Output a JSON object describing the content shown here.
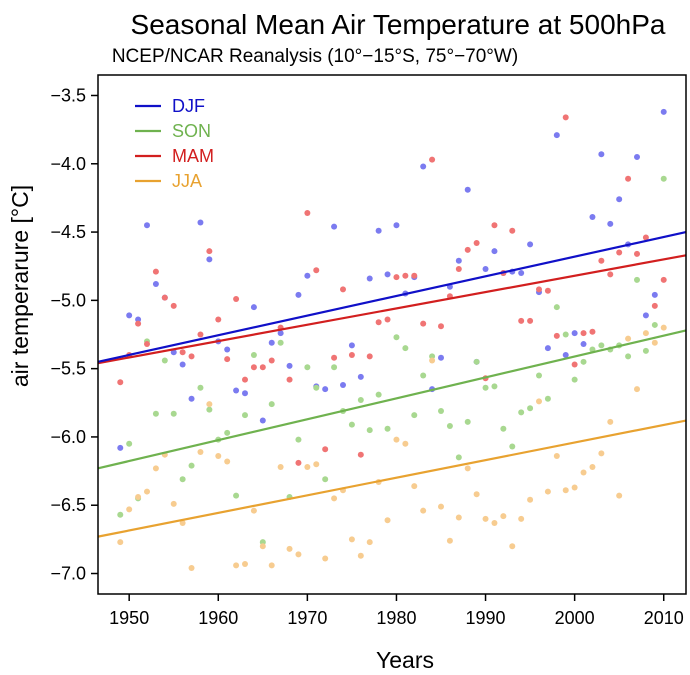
{
  "chart_data": {
    "type": "scatter",
    "title": "Seasonal Mean Air Temperature at 500hPa",
    "subtitle": "NCEP/NCAR Reanalysis (10°−15°S, 75°−70°W)",
    "xlabel": "Years",
    "ylabel": "air temperarure [°C]",
    "xlim": [
      1946.5,
      2012.5
    ],
    "ylim": [
      -7.15,
      -3.35
    ],
    "x_ticks": [
      1950,
      1960,
      1970,
      1980,
      1990,
      2000,
      2010
    ],
    "x_tick_labels": [
      "1950",
      "1960",
      "1970",
      "1980",
      "1990",
      "2000",
      "2010"
    ],
    "y_ticks": [
      -7.0,
      -6.5,
      -6.0,
      -5.5,
      -5.0,
      -4.5,
      -4.0,
      -3.5
    ],
    "y_tick_labels": [
      "−7.0",
      "−6.5",
      "−6.0",
      "−5.5",
      "−5.0",
      "−4.5",
      "−4.0",
      "−3.5"
    ],
    "grid": false,
    "legend_position": "top-left",
    "series": [
      {
        "name": "DJF",
        "color": "#1010c8",
        "point_color": "#7b7bf0",
        "trend": [
          [
            1946.5,
            -5.45
          ],
          [
            2012.5,
            -4.5
          ]
        ],
        "points": [
          [
            1949,
            -6.08
          ],
          [
            1950,
            -5.11
          ],
          [
            1951,
            -5.14
          ],
          [
            1952,
            -4.45
          ],
          [
            1953,
            -4.88
          ],
          [
            1954,
            -4.98
          ],
          [
            1955,
            -5.38
          ],
          [
            1956,
            -5.47
          ],
          [
            1957,
            -5.72
          ],
          [
            1958,
            -4.43
          ],
          [
            1959,
            -4.7
          ],
          [
            1960,
            -5.3
          ],
          [
            1961,
            -5.36
          ],
          [
            1962,
            -5.66
          ],
          [
            1963,
            -5.68
          ],
          [
            1964,
            -5.05
          ],
          [
            1965,
            -5.88
          ],
          [
            1966,
            -5.31
          ],
          [
            1967,
            -5.24
          ],
          [
            1968,
            -5.48
          ],
          [
            1969,
            -4.96
          ],
          [
            1970,
            -4.82
          ],
          [
            1971,
            -5.63
          ],
          [
            1972,
            -5.65
          ],
          [
            1973,
            -4.46
          ],
          [
            1974,
            -5.62
          ],
          [
            1975,
            -5.33
          ],
          [
            1976,
            -5.56
          ],
          [
            1977,
            -4.84
          ],
          [
            1978,
            -4.49
          ],
          [
            1979,
            -4.81
          ],
          [
            1980,
            -4.45
          ],
          [
            1981,
            -4.95
          ],
          [
            1982,
            -4.83
          ],
          [
            1983,
            -4.02
          ],
          [
            1984,
            -5.65
          ],
          [
            1985,
            -5.42
          ],
          [
            1986,
            -4.9
          ],
          [
            1987,
            -4.71
          ],
          [
            1988,
            -4.19
          ],
          [
            1989,
            -5.45
          ],
          [
            1990,
            -4.77
          ],
          [
            1991,
            -4.64
          ],
          [
            1992,
            -4.8
          ],
          [
            1993,
            -4.79
          ],
          [
            1994,
            -4.8
          ],
          [
            1995,
            -4.59
          ],
          [
            1996,
            -4.94
          ],
          [
            1997,
            -5.35
          ],
          [
            1998,
            -3.79
          ],
          [
            1999,
            -5.4
          ],
          [
            2000,
            -5.24
          ],
          [
            2001,
            -5.32
          ],
          [
            2002,
            -4.39
          ],
          [
            2003,
            -3.93
          ],
          [
            2004,
            -4.44
          ],
          [
            2005,
            -4.26
          ],
          [
            2006,
            -4.59
          ],
          [
            2007,
            -3.95
          ],
          [
            2008,
            -5.11
          ],
          [
            2009,
            -4.96
          ],
          [
            2010,
            -3.62
          ]
        ]
      },
      {
        "name": "SON",
        "color": "#6fb24f",
        "point_color": "#a8d890",
        "trend": [
          [
            1946.5,
            -6.23
          ],
          [
            2012.5,
            -5.22
          ]
        ],
        "points": [
          [
            1949,
            -6.57
          ],
          [
            1950,
            -6.05
          ],
          [
            1951,
            -6.45
          ],
          [
            1952,
            -5.3
          ],
          [
            1953,
            -5.83
          ],
          [
            1954,
            -5.44
          ],
          [
            1955,
            -5.83
          ],
          [
            1956,
            -6.31
          ],
          [
            1957,
            -6.21
          ],
          [
            1958,
            -5.64
          ],
          [
            1959,
            -5.8
          ],
          [
            1960,
            -6.02
          ],
          [
            1961,
            -5.97
          ],
          [
            1962,
            -6.43
          ],
          [
            1963,
            -5.84
          ],
          [
            1964,
            -5.4
          ],
          [
            1965,
            -6.77
          ],
          [
            1966,
            -5.76
          ],
          [
            1967,
            -5.31
          ],
          [
            1968,
            -6.44
          ],
          [
            1969,
            -6.02
          ],
          [
            1970,
            -5.49
          ],
          [
            1971,
            -5.64
          ],
          [
            1972,
            -6.31
          ],
          [
            1973,
            -5.49
          ],
          [
            1974,
            -5.81
          ],
          [
            1975,
            -5.91
          ],
          [
            1976,
            -5.73
          ],
          [
            1977,
            -5.95
          ],
          [
            1978,
            -5.69
          ],
          [
            1979,
            -5.94
          ],
          [
            1980,
            -5.27
          ],
          [
            1981,
            -5.35
          ],
          [
            1982,
            -5.84
          ],
          [
            1983,
            -5.55
          ],
          [
            1984,
            -5.41
          ],
          [
            1985,
            -5.81
          ],
          [
            1986,
            -5.92
          ],
          [
            1987,
            -6.15
          ],
          [
            1988,
            -5.89
          ],
          [
            1989,
            -5.45
          ],
          [
            1990,
            -5.64
          ],
          [
            1991,
            -5.63
          ],
          [
            1992,
            -5.94
          ],
          [
            1993,
            -6.07
          ],
          [
            1994,
            -5.82
          ],
          [
            1995,
            -5.79
          ],
          [
            1996,
            -5.55
          ],
          [
            1997,
            -5.72
          ],
          [
            1998,
            -5.05
          ],
          [
            1999,
            -5.25
          ],
          [
            2000,
            -5.58
          ],
          [
            2001,
            -5.45
          ],
          [
            2002,
            -5.36
          ],
          [
            2003,
            -5.33
          ],
          [
            2004,
            -5.36
          ],
          [
            2005,
            -5.33
          ],
          [
            2006,
            -5.41
          ],
          [
            2007,
            -4.85
          ],
          [
            2008,
            -5.37
          ],
          [
            2009,
            -5.18
          ],
          [
            2010,
            -4.11
          ]
        ]
      },
      {
        "name": "MAM",
        "color": "#d21f1f",
        "point_color": "#f07474",
        "trend": [
          [
            1946.5,
            -5.46
          ],
          [
            2012.5,
            -4.67
          ]
        ],
        "points": [
          [
            1949,
            -5.6
          ],
          [
            1950,
            -5.4
          ],
          [
            1951,
            -5.17
          ],
          [
            1952,
            -5.32
          ],
          [
            1953,
            -4.79
          ],
          [
            1954,
            -4.98
          ],
          [
            1955,
            -5.04
          ],
          [
            1956,
            -5.38
          ],
          [
            1957,
            -5.41
          ],
          [
            1958,
            -5.25
          ],
          [
            1959,
            -4.64
          ],
          [
            1960,
            -5.14
          ],
          [
            1961,
            -5.43
          ],
          [
            1962,
            -4.99
          ],
          [
            1963,
            -5.58
          ],
          [
            1964,
            -5.49
          ],
          [
            1965,
            -5.49
          ],
          [
            1966,
            -5.44
          ],
          [
            1967,
            -5.2
          ],
          [
            1968,
            -5.58
          ],
          [
            1969,
            -6.19
          ],
          [
            1970,
            -4.36
          ],
          [
            1971,
            -4.78
          ],
          [
            1972,
            -6.09
          ],
          [
            1973,
            -5.42
          ],
          [
            1974,
            -4.92
          ],
          [
            1975,
            -5.4
          ],
          [
            1976,
            -6.13
          ],
          [
            1977,
            -5.41
          ],
          [
            1978,
            -5.16
          ],
          [
            1979,
            -5.14
          ],
          [
            1980,
            -4.83
          ],
          [
            1981,
            -4.82
          ],
          [
            1982,
            -4.82
          ],
          [
            1983,
            -5.17
          ],
          [
            1984,
            -3.97
          ],
          [
            1985,
            -5.19
          ],
          [
            1986,
            -4.97
          ],
          [
            1987,
            -4.77
          ],
          [
            1988,
            -4.63
          ],
          [
            1989,
            -4.58
          ],
          [
            1990,
            -5.57
          ],
          [
            1991,
            -4.45
          ],
          [
            1992,
            -4.8
          ],
          [
            1993,
            -4.49
          ],
          [
            1994,
            -5.15
          ],
          [
            1995,
            -5.15
          ],
          [
            1996,
            -4.92
          ],
          [
            1997,
            -4.93
          ],
          [
            1998,
            -5.26
          ],
          [
            1999,
            -3.66
          ],
          [
            2000,
            -5.47
          ],
          [
            2001,
            -5.24
          ],
          [
            2002,
            -5.23
          ],
          [
            2003,
            -4.71
          ],
          [
            2004,
            -4.81
          ],
          [
            2005,
            -4.65
          ],
          [
            2006,
            -4.11
          ],
          [
            2007,
            -4.66
          ],
          [
            2008,
            -4.54
          ],
          [
            2009,
            -5.04
          ],
          [
            2010,
            -4.85
          ]
        ]
      },
      {
        "name": "JJA",
        "color": "#e8a230",
        "point_color": "#f7cc90",
        "trend": [
          [
            1946.5,
            -6.73
          ],
          [
            2012.5,
            -5.88
          ]
        ],
        "points": [
          [
            1949,
            -6.77
          ],
          [
            1950,
            -6.53
          ],
          [
            1951,
            -6.44
          ],
          [
            1952,
            -6.4
          ],
          [
            1953,
            -6.23
          ],
          [
            1954,
            -6.13
          ],
          [
            1955,
            -6.49
          ],
          [
            1956,
            -6.63
          ],
          [
            1957,
            -6.96
          ],
          [
            1958,
            -6.11
          ],
          [
            1959,
            -5.76
          ],
          [
            1960,
            -6.14
          ],
          [
            1961,
            -6.18
          ],
          [
            1962,
            -6.94
          ],
          [
            1963,
            -6.93
          ],
          [
            1964,
            -6.54
          ],
          [
            1965,
            -6.8
          ],
          [
            1966,
            -6.94
          ],
          [
            1967,
            -6.22
          ],
          [
            1968,
            -6.82
          ],
          [
            1969,
            -6.86
          ],
          [
            1970,
            -6.22
          ],
          [
            1971,
            -6.2
          ],
          [
            1972,
            -6.89
          ],
          [
            1973,
            -6.45
          ],
          [
            1974,
            -6.39
          ],
          [
            1975,
            -6.75
          ],
          [
            1976,
            -6.87
          ],
          [
            1977,
            -6.77
          ],
          [
            1978,
            -6.33
          ],
          [
            1979,
            -6.61
          ],
          [
            1980,
            -6.02
          ],
          [
            1981,
            -6.05
          ],
          [
            1982,
            -6.36
          ],
          [
            1983,
            -6.54
          ],
          [
            1984,
            -5.44
          ],
          [
            1985,
            -6.51
          ],
          [
            1986,
            -6.76
          ],
          [
            1987,
            -6.59
          ],
          [
            1988,
            -6.23
          ],
          [
            1989,
            -6.42
          ],
          [
            1990,
            -6.6
          ],
          [
            1991,
            -6.63
          ],
          [
            1992,
            -6.58
          ],
          [
            1993,
            -6.8
          ],
          [
            1994,
            -6.6
          ],
          [
            1995,
            -6.46
          ],
          [
            1996,
            -5.74
          ],
          [
            1997,
            -6.4
          ],
          [
            1998,
            -6.14
          ],
          [
            1999,
            -6.39
          ],
          [
            2000,
            -6.37
          ],
          [
            2001,
            -6.26
          ],
          [
            2002,
            -6.22
          ],
          [
            2003,
            -6.12
          ],
          [
            2004,
            -5.89
          ],
          [
            2005,
            -6.43
          ],
          [
            2006,
            -5.28
          ],
          [
            2007,
            -5.65
          ],
          [
            2008,
            -5.24
          ],
          [
            2009,
            -5.31
          ],
          [
            2010,
            -5.2
          ]
        ]
      }
    ]
  }
}
